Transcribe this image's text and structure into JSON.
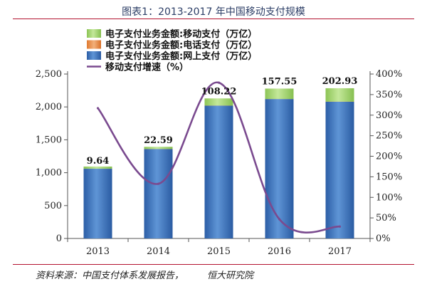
{
  "header": {
    "title": "图表1：2013-2017 年中国移动支付规模"
  },
  "footer": {
    "source": "资料来源：中国支付体系发展报告，        恒大研究院"
  },
  "chart_data": {
    "type": "bar",
    "categories": [
      "2013",
      "2014",
      "2015",
      "2016",
      "2017"
    ],
    "series": [
      {
        "name": "电子支付业务金额:网上支付（万亿）",
        "kind": "bar",
        "axis": "left",
        "color": "#3a72c0",
        "values": [
          1060,
          1360,
          2020,
          2120,
          2080
        ]
      },
      {
        "name": "电子支付业务金额:电话支付（万亿）",
        "kind": "bar",
        "axis": "left",
        "color": "#e8904a",
        "values": [
          0.6,
          0.8,
          1.0,
          1.0,
          1.0
        ]
      },
      {
        "name": "电子支付业务金额:移动支付（万亿）",
        "kind": "bar",
        "axis": "left",
        "color": "#a8d870",
        "values": [
          9.64,
          22.59,
          108.22,
          157.55,
          202.93
        ],
        "labels": [
          "9.64",
          "22.59",
          "108.22",
          "157.55",
          "202.93"
        ]
      },
      {
        "name": "移动支付增速（%）",
        "kind": "line",
        "axis": "right",
        "color": "#7a4a8f",
        "values": [
          317,
          133,
          379,
          47,
          29
        ]
      }
    ],
    "stack_order": [
      "电子支付业务金额:网上支付（万亿）",
      "电子支付业务金额:电话支付（万亿）",
      "电子支付业务金额:移动支付（万亿）"
    ],
    "legend_order": [
      "电子支付业务金额:移动支付（万亿）",
      "电子支付业务金额:电话支付（万亿）",
      "电子支付业务金额:网上支付（万亿）",
      "移动支付增速（%）"
    ],
    "legend_position": "top-left",
    "y_left": {
      "min": 0,
      "max": 2500,
      "ticks": [
        "0",
        "500",
        "1,000",
        "1,500",
        "2,000",
        "2,500"
      ]
    },
    "y_right": {
      "min": 0,
      "max": 400,
      "ticks": [
        "0%",
        "50%",
        "100%",
        "150%",
        "200%",
        "250%",
        "300%",
        "350%",
        "400%"
      ]
    },
    "grid": false
  }
}
